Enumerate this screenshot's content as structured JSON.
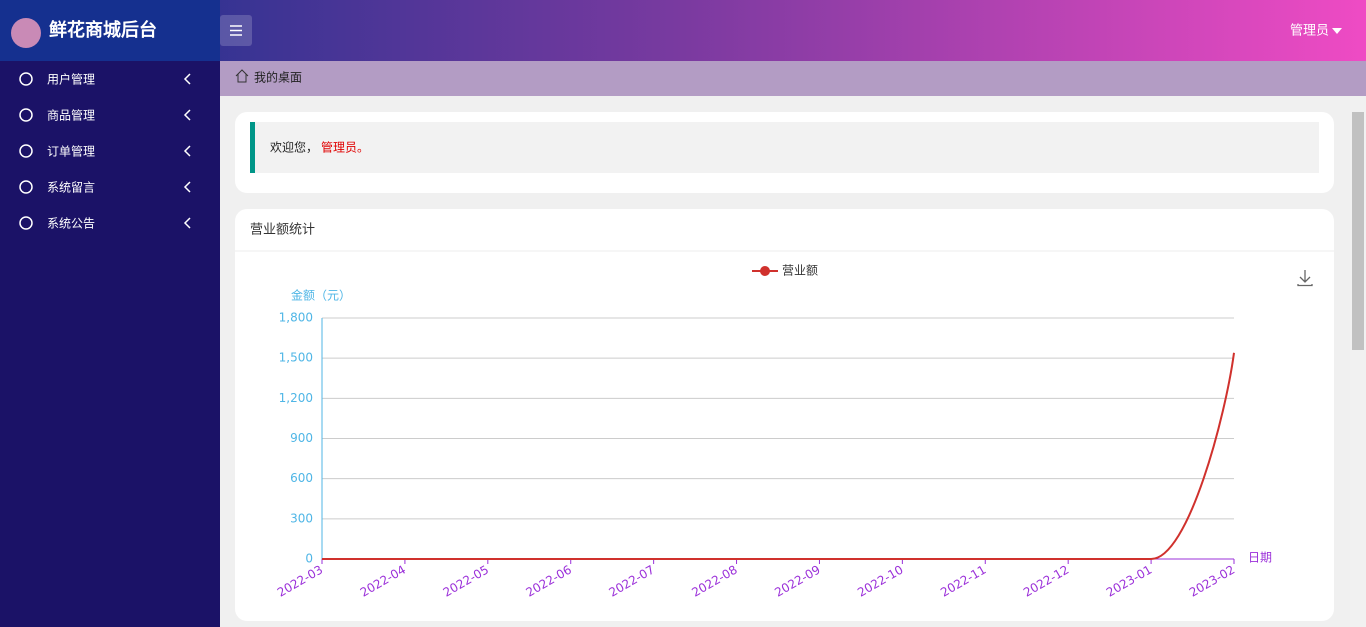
{
  "header": {
    "title": "鲜花商城后台",
    "user": "管理员"
  },
  "sidebar": {
    "items": [
      "用户管理",
      "商品管理",
      "订单管理",
      "系统留言",
      "系统公告"
    ]
  },
  "breadcrumb": "我的桌面",
  "welcome": {
    "text": "欢迎您，",
    "name": "管理员。"
  },
  "panel": {
    "title": "营业额统计"
  },
  "chart_data": {
    "type": "line",
    "y_label": "金额（元）",
    "x_label": "日期",
    "categories": [
      "2022-03",
      "2022-04",
      "2022-05",
      "2022-06",
      "2022-07",
      "2022-08",
      "2022-09",
      "2022-10",
      "2022-11",
      "2022-12",
      "2023-01",
      "2023-02"
    ],
    "series": [
      {
        "name": "营业额",
        "color": "#d0312d",
        "values": [
          0,
          0,
          0,
          0,
          0,
          0,
          0,
          0,
          0,
          0,
          0,
          1540
        ]
      }
    ],
    "ylim": [
      0,
      1800
    ],
    "yticks": [
      0,
      300,
      600,
      900,
      {
        "value": 1200,
        "label": "1,200"
      },
      {
        "value": 1500,
        "label": "1,500"
      },
      {
        "value": 1800,
        "label": "1,800"
      }
    ],
    "grid": true,
    "legend": "top"
  }
}
